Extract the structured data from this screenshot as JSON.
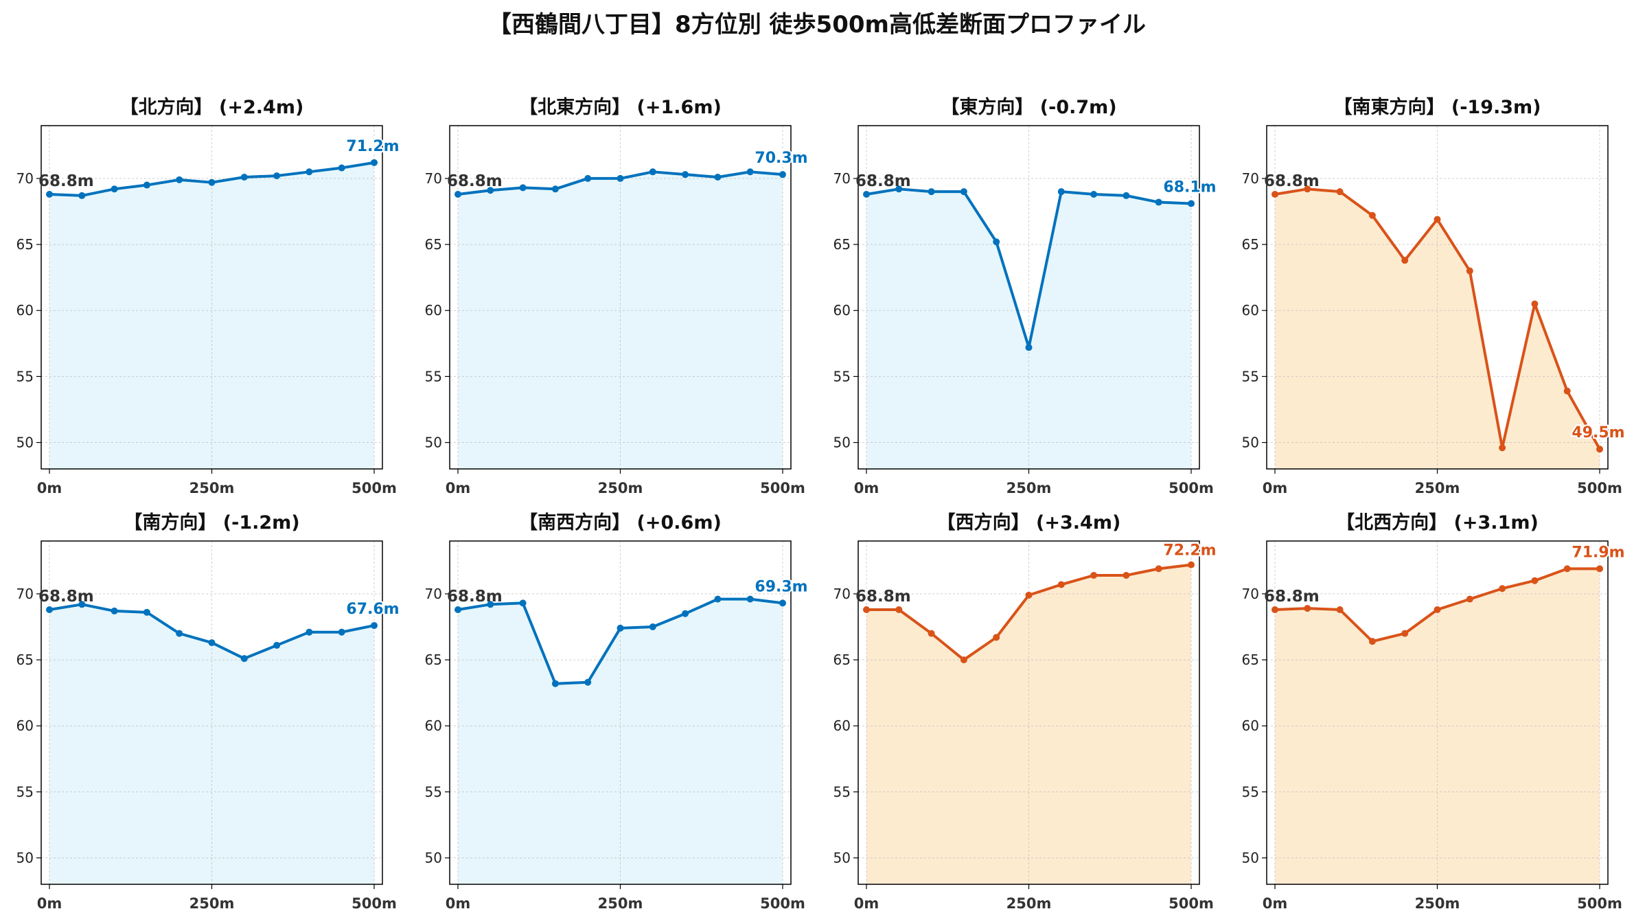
{
  "title": "【西鶴間八丁目】8方位別 徒歩500m高低差断面プロファイル",
  "colors": {
    "up_line": "#0072BD",
    "up_fill": "#E6F6FC",
    "down_line": "#D95319",
    "down_fill": "#FDEBD0",
    "start_label": "#333333",
    "grid": "#BBBBBB"
  },
  "chart_data": [
    {
      "type": "line",
      "title": "【北方向】 (+2.4m)",
      "style": "blue",
      "x": [
        0,
        50,
        100,
        150,
        200,
        250,
        300,
        350,
        400,
        450,
        500
      ],
      "values": [
        68.8,
        68.7,
        69.2,
        69.5,
        69.9,
        69.7,
        70.1,
        70.2,
        70.5,
        70.8,
        71.2
      ],
      "xticks": [
        "0m",
        "250m",
        "500m"
      ],
      "yticks": [
        "50",
        "55",
        "60",
        "65",
        "70"
      ],
      "ylim": [
        48,
        74
      ],
      "start_label": "68.8m",
      "end_label": "71.2m",
      "grid": true
    },
    {
      "type": "line",
      "title": "【北東方向】 (+1.6m)",
      "style": "blue",
      "x": [
        0,
        50,
        100,
        150,
        200,
        250,
        300,
        350,
        400,
        450,
        500
      ],
      "values": [
        68.8,
        69.1,
        69.3,
        69.2,
        70.0,
        70.0,
        70.5,
        70.3,
        70.1,
        70.5,
        70.3
      ],
      "xticks": [
        "0m",
        "250m",
        "500m"
      ],
      "yticks": [
        "50",
        "55",
        "60",
        "65",
        "70"
      ],
      "ylim": [
        48,
        74
      ],
      "start_label": "68.8m",
      "end_label": "70.3m",
      "grid": true
    },
    {
      "type": "line",
      "title": "【東方向】 (-0.7m)",
      "style": "blue",
      "x": [
        0,
        50,
        100,
        150,
        200,
        250,
        300,
        350,
        400,
        450,
        500
      ],
      "values": [
        68.8,
        69.2,
        69.0,
        69.0,
        65.2,
        57.2,
        69.0,
        68.8,
        68.7,
        68.2,
        68.1
      ],
      "xticks": [
        "0m",
        "250m",
        "500m"
      ],
      "yticks": [
        "50",
        "55",
        "60",
        "65",
        "70"
      ],
      "ylim": [
        48,
        74
      ],
      "start_label": "68.8m",
      "end_label": "68.1m",
      "grid": true
    },
    {
      "type": "line",
      "title": "【南東方向】 (-19.3m)",
      "style": "orange",
      "x": [
        0,
        50,
        100,
        150,
        200,
        250,
        300,
        350,
        400,
        450,
        500
      ],
      "values": [
        68.8,
        69.2,
        69.0,
        67.2,
        63.8,
        66.9,
        63.0,
        49.6,
        60.5,
        53.9,
        49.5
      ],
      "xticks": [
        "0m",
        "250m",
        "500m"
      ],
      "yticks": [
        "50",
        "55",
        "60",
        "65",
        "70"
      ],
      "ylim": [
        48,
        74
      ],
      "start_label": "68.8m",
      "end_label": "49.5m",
      "grid": true
    },
    {
      "type": "line",
      "title": "【南方向】 (-1.2m)",
      "style": "blue",
      "x": [
        0,
        50,
        100,
        150,
        200,
        250,
        300,
        350,
        400,
        450,
        500
      ],
      "values": [
        68.8,
        69.2,
        68.7,
        68.6,
        67.0,
        66.3,
        65.1,
        66.1,
        67.1,
        67.1,
        67.6
      ],
      "xticks": [
        "0m",
        "250m",
        "500m"
      ],
      "yticks": [
        "50",
        "55",
        "60",
        "65",
        "70"
      ],
      "ylim": [
        48,
        74
      ],
      "start_label": "68.8m",
      "end_label": "67.6m",
      "grid": true
    },
    {
      "type": "line",
      "title": "【南西方向】 (+0.6m)",
      "style": "blue",
      "x": [
        0,
        50,
        100,
        150,
        200,
        250,
        300,
        350,
        400,
        450,
        500
      ],
      "values": [
        68.8,
        69.2,
        69.3,
        63.2,
        63.3,
        67.4,
        67.5,
        68.5,
        69.6,
        69.6,
        69.3
      ],
      "xticks": [
        "0m",
        "250m",
        "500m"
      ],
      "yticks": [
        "50",
        "55",
        "60",
        "65",
        "70"
      ],
      "ylim": [
        48,
        74
      ],
      "start_label": "68.8m",
      "end_label": "69.3m",
      "grid": true
    },
    {
      "type": "line",
      "title": "【西方向】 (+3.4m)",
      "style": "orange",
      "x": [
        0,
        50,
        100,
        150,
        200,
        250,
        300,
        350,
        400,
        450,
        500
      ],
      "values": [
        68.8,
        68.8,
        67.0,
        65.0,
        66.7,
        69.9,
        70.7,
        71.4,
        71.4,
        71.9,
        72.2
      ],
      "xticks": [
        "0m",
        "250m",
        "500m"
      ],
      "yticks": [
        "50",
        "55",
        "60",
        "65",
        "70"
      ],
      "ylim": [
        48,
        74
      ],
      "start_label": "68.8m",
      "end_label": "72.2m",
      "grid": true
    },
    {
      "type": "line",
      "title": "【北西方向】 (+3.1m)",
      "style": "orange",
      "x": [
        0,
        50,
        100,
        150,
        200,
        250,
        300,
        350,
        400,
        450,
        500
      ],
      "values": [
        68.8,
        68.9,
        68.8,
        66.4,
        67.0,
        68.8,
        69.6,
        70.4,
        71.0,
        71.9,
        71.9
      ],
      "xticks": [
        "0m",
        "250m",
        "500m"
      ],
      "yticks": [
        "50",
        "55",
        "60",
        "65",
        "70"
      ],
      "ylim": [
        48,
        74
      ],
      "start_label": "68.8m",
      "end_label": "71.9m",
      "grid": true
    }
  ]
}
